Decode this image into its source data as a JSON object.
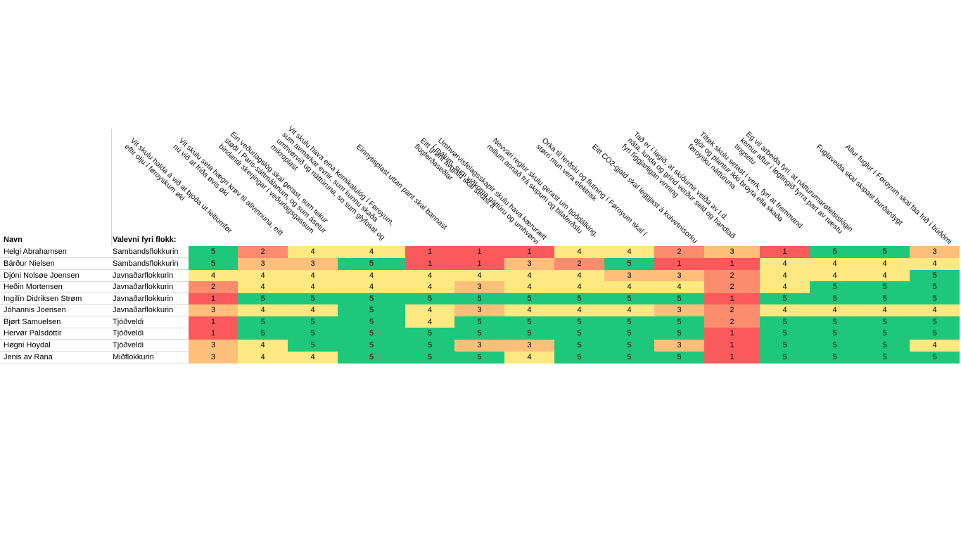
{
  "headers": {
    "navn": "Navn",
    "flokkur": "Valevni fyri flokk:"
  },
  "statements": [
    [
      "Vit skulu halda á við at bjóða út leitiumfør",
      "eftir olju í føroyskum øki"
    ],
    [
      "Vit skulu seta hægri krøv til alivinnuna, eitt",
      "nú við at friða øvis øki"
    ],
    [
      "Ein veðurlagslóg skal gerast, sum tekur",
      "støði í Paris-sáttmálanum, og sum ásetur",
      "bindandi skerjingar í veðurlagsgassum"
    ],
    [
      "Vit skulu hava eina kemikalulóg í Føroyum,",
      "sum avmarkar evnir, sum kunnu skaða",
      "umhvørvið og náttúruna, so sum glyfosat og",
      "mikroplast"
    ],
    [
      "Einnýtisplast uttan pant skal bannast"
    ],
    [
      "Eitt grønt avgjald skal setast á",
      "flogferðaseðlar"
    ],
    [
      "Umhvørvisfelagsskapir skulu hava kærurætt",
      "í málum, sum viðkoma náttúru og umhvørvi"
    ],
    [
      "Nevvari reglur skulu gerast um tjóðdálking,",
      "millum annað frá skipum og bilaferðslu"
    ],
    [
      "Orka til ferðslu og flutning í Føroyum skal í",
      "størri mun vera elektrisk"
    ],
    [
      "Eitt CO2-gjald skal leggjast á kolvetnisorku"
    ],
    [
      "Tað er í lagið, at skíðurnir veiða av t.d.",
      "náta, lunda og grind verður seld og handlað",
      "fyri fíggjarligan vinning"
    ],
    [
      "Tiltøk skulu setast í verk, fyri at fremmand",
      "djór og plantur ikki broyta ella skaða",
      "føroysku náttúruna"
    ],
    [
      "Eg vil arbeiða fyri, at náttúrumarøfelsislógin",
      "kemur aftur í løgtingið fyrra part av næstu",
      "tingsetu"
    ],
    [
      "Fuglaveiða skal skipast burðardygt"
    ],
    [
      "Allur fuglur í Føroyum skal fáa frið í búðómi"
    ]
  ],
  "rows": [
    {
      "name": "Helgi Abrahamsen",
      "party": "Sambandsflokkurin",
      "values": [
        5,
        2,
        4,
        4,
        1,
        1,
        1,
        4,
        4,
        2,
        3,
        1,
        5,
        5,
        3
      ]
    },
    {
      "name": "Bárður Nielsen",
      "party": "Sambandsflokkurin",
      "values": [
        5,
        3,
        3,
        5,
        1,
        1,
        3,
        2,
        5,
        1,
        1,
        4,
        4,
        4,
        4
      ]
    },
    {
      "name": "Djóni Nolsøe Joensen",
      "party": "Javnaðarflokkurin",
      "values": [
        4,
        4,
        4,
        4,
        4,
        4,
        4,
        4,
        3,
        3,
        2,
        4,
        4,
        4,
        5
      ]
    },
    {
      "name": "Heðin Mortensen",
      "party": "Javnaðarflokkurin",
      "values": [
        2,
        4,
        4,
        4,
        4,
        3,
        4,
        4,
        4,
        4,
        2,
        4,
        5,
        5,
        5
      ]
    },
    {
      "name": "Ingilín Didriksen Strøm",
      "party": "Javnaðarflokkurin",
      "values": [
        1,
        5,
        5,
        5,
        5,
        5,
        5,
        5,
        5,
        5,
        1,
        5,
        5,
        5,
        5
      ]
    },
    {
      "name": "Jóhannis Joensen",
      "party": "Javnaðarflokkurin",
      "values": [
        3,
        4,
        4,
        5,
        4,
        3,
        4,
        4,
        4,
        3,
        2,
        4,
        4,
        4,
        4
      ]
    },
    {
      "name": "Bjørt Samuelsen",
      "party": "Tjóðveldi",
      "values": [
        1,
        5,
        5,
        5,
        4,
        5,
        5,
        5,
        5,
        5,
        2,
        5,
        5,
        5,
        5
      ]
    },
    {
      "name": "Hervør Pálsdóttir",
      "party": "Tjóðveldi",
      "values": [
        1,
        5,
        5,
        5,
        5,
        5,
        5,
        5,
        5,
        5,
        1,
        5,
        5,
        5,
        5
      ]
    },
    {
      "name": "Høgni Hoydal",
      "party": "Tjóðveldi",
      "values": [
        3,
        4,
        5,
        5,
        5,
        3,
        3,
        5,
        5,
        3,
        1,
        5,
        5,
        5,
        4
      ]
    },
    {
      "name": "Jenis av Rana",
      "party": "Miðflokkurin",
      "values": [
        3,
        4,
        4,
        5,
        5,
        5,
        4,
        5,
        5,
        5,
        1,
        5,
        5,
        5,
        5
      ]
    }
  ],
  "colors": {
    "1": "#fb5a5c",
    "2": "#fb8c6e",
    "3": "#fdbf7a",
    "4": "#fde882",
    "5": "#1fc77a"
  }
}
